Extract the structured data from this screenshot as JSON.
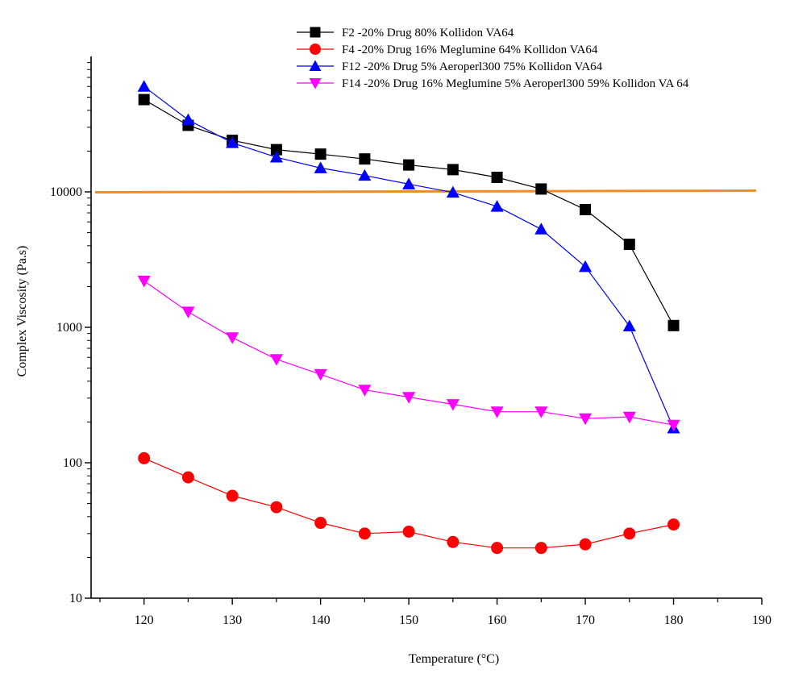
{
  "chart_data": {
    "type": "line",
    "title": "",
    "xlabel": "Temperature (°C)",
    "ylabel": "Complex Viscosity (Pa.s)",
    "x_scale": "linear",
    "y_scale": "log",
    "xlim": [
      114,
      190
    ],
    "ylim": [
      10,
      100000
    ],
    "x_ticks": [
      120,
      130,
      140,
      150,
      160,
      170,
      180,
      190
    ],
    "y_ticks": [
      10,
      100,
      1000,
      10000
    ],
    "y_tick_labels": [
      "10",
      "100",
      "1000",
      "10000"
    ],
    "legend_position": "top-right",
    "reference_line": {
      "y": 10000,
      "color": "#f28c28"
    },
    "series": [
      {
        "name": "F2 -20% Drug 80% Kollidon VA64",
        "color": "#000000",
        "marker": "square",
        "x": [
          120,
          125,
          130,
          135,
          140,
          145,
          150,
          155,
          160,
          165,
          170,
          175,
          180
        ],
        "y": [
          48000,
          31000,
          24000,
          20500,
          19000,
          17500,
          15800,
          14600,
          12800,
          10500,
          7400,
          4100,
          1030
        ]
      },
      {
        "name": "F4 -20% Drug 16% Meglumine 64% Kollidon VA64",
        "color": "#ff0000",
        "marker": "circle",
        "x": [
          120,
          125,
          130,
          135,
          140,
          145,
          150,
          155,
          160,
          165,
          170,
          175,
          180
        ],
        "y": [
          108,
          78,
          57,
          47,
          36,
          30,
          31,
          26,
          23.5,
          23.5,
          25,
          30,
          35
        ]
      },
      {
        "name": "F12 -20% Drug 5% Aeroperl300 75% Kollidon VA64",
        "color": "#0000ff",
        "marker": "triangle-up",
        "x": [
          120,
          125,
          130,
          135,
          140,
          145,
          150,
          155,
          160,
          165,
          170,
          175,
          180
        ],
        "y": [
          60000,
          34000,
          23000,
          18000,
          15000,
          13200,
          11400,
          9900,
          7800,
          5300,
          2800,
          1020,
          180
        ]
      },
      {
        "name": "F14 -20% Drug 16% Meglumine 5% Aeroperl300 59% Kollidon VA 64",
        "color": "#ff00ff",
        "marker": "triangle-down",
        "x": [
          120,
          125,
          130,
          135,
          140,
          145,
          150,
          155,
          160,
          165,
          170,
          175,
          180
        ],
        "y": [
          2200,
          1300,
          840,
          580,
          450,
          345,
          305,
          270,
          238,
          238,
          212,
          218,
          190
        ]
      }
    ]
  }
}
